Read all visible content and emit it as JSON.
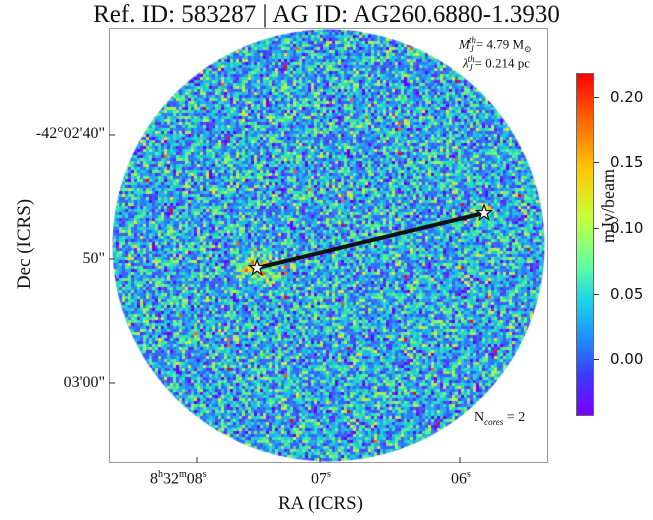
{
  "title": "Ref. ID: 583287 | AG ID: AG260.6880-1.3930",
  "annotation": {
    "mass_symbol": "M",
    "mass_sub": "J",
    "mass_sup": "th",
    "mass_value": "= 4.79 M",
    "mass_sun_symbol": "⊙",
    "lambda_symbol": "λ",
    "lambda_sub": "J",
    "lambda_sup": "th",
    "lambda_value": "= 0.214 pc",
    "ncores_prefix": "N",
    "ncores_sub": "cores",
    "ncores_value": " = 2"
  },
  "axes": {
    "xlabel": "RA (ICRS)",
    "ylabel": "Dec (ICRS)",
    "yticks": [
      "-42°02'40\"",
      "50\"",
      "03'00\""
    ],
    "xticks": [
      {
        "main": "8",
        "sup1": "h",
        "mid": "32",
        "sup2": "m",
        "end": "08",
        "sup3": "s"
      },
      {
        "main": "07",
        "sup": "s"
      },
      {
        "main": "06",
        "sup": "s"
      }
    ]
  },
  "colorbar": {
    "label": "mJy/beam",
    "ticks": [
      "0.20",
      "0.15",
      "0.10",
      "0.05",
      "0.00"
    ],
    "tick_values": [
      0.2,
      0.15,
      0.1,
      0.05,
      0.0
    ],
    "range": [
      -0.03,
      0.22
    ],
    "colormap": "rainbow"
  },
  "cores": [
    {
      "name": "core-1",
      "marker": "star"
    },
    {
      "name": "core-2",
      "marker": "star"
    }
  ],
  "colors": {
    "background_field": "#6a2cff",
    "link_line": "#111111",
    "star_fill": "#ffffff"
  }
}
